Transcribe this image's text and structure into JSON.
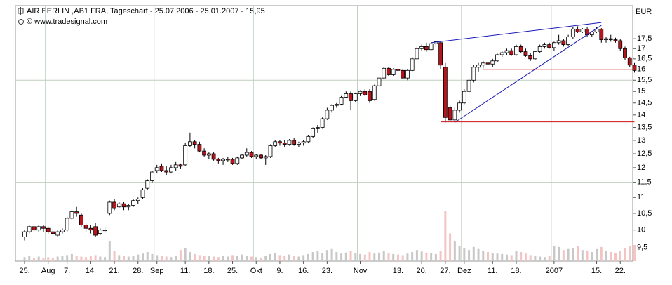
{
  "chart_data": {
    "type": "candlestick",
    "title": "AIR BERLIN ,AB1 FRA, Tageschart - 25.07.2006 - 25.01.2007 - 15,95",
    "subtitle": "© www.tradesignal.com",
    "y_unit": "EUR",
    "categories": [
      "25.",
      null,
      null,
      null,
      null,
      "Aug",
      null,
      null,
      null,
      "7.",
      null,
      null,
      null,
      null,
      "14.",
      null,
      null,
      null,
      null,
      "21.",
      null,
      null,
      null,
      null,
      "28.",
      null,
      null,
      null,
      "Sep",
      null,
      null,
      null,
      null,
      null,
      "11.",
      null,
      null,
      null,
      null,
      "18.",
      null,
      null,
      null,
      null,
      "25.",
      null,
      null,
      null,
      null,
      "Okt",
      null,
      null,
      null,
      null,
      "9.",
      null,
      null,
      null,
      null,
      "16.",
      null,
      null,
      null,
      null,
      "23.",
      null,
      null,
      null,
      null,
      null,
      null,
      "Nov",
      null,
      null,
      null,
      null,
      null,
      null,
      null,
      "13.",
      null,
      null,
      null,
      null,
      "20.",
      null,
      null,
      null,
      null,
      "27.",
      null,
      null,
      null,
      "Dez",
      null,
      null,
      null,
      null,
      null,
      "11.",
      null,
      null,
      null,
      null,
      "18.",
      null,
      null,
      null,
      null,
      null,
      null,
      null,
      "2007",
      null,
      null,
      null,
      null,
      null,
      null,
      null,
      null,
      "15.",
      null,
      null,
      null,
      null,
      "22.",
      null,
      null,
      null
    ],
    "open": [
      9.8,
      9.95,
      10.1,
      10.0,
      10.1,
      10.05,
      9.95,
      9.85,
      9.95,
      10.0,
      10.35,
      10.55,
      10.45,
      10.15,
      10.05,
      10.1,
      9.9,
      10.0,
      10.5,
      10.85,
      10.7,
      10.8,
      10.7,
      10.75,
      10.9,
      11.0,
      11.3,
      11.55,
      11.9,
      12.05,
      11.9,
      11.85,
      12.0,
      12.1,
      12.1,
      12.8,
      12.95,
      12.85,
      12.6,
      12.45,
      12.5,
      12.3,
      12.25,
      12.3,
      12.3,
      12.15,
      12.35,
      12.45,
      12.55,
      12.4,
      12.45,
      12.35,
      12.4,
      12.8,
      12.95,
      12.9,
      12.85,
      13.0,
      12.85,
      12.9,
      12.95,
      13.15,
      13.45,
      13.5,
      13.85,
      14.2,
      14.4,
      14.45,
      14.75,
      14.9,
      14.6,
      14.9,
      15.0,
      15.0,
      14.65,
      15.25,
      15.6,
      16.05,
      15.75,
      16.0,
      15.95,
      15.6,
      15.95,
      16.5,
      17.0,
      17.1,
      16.95,
      17.25,
      17.3,
      16.1,
      14.3,
      13.8,
      14.2,
      14.5,
      15.0,
      15.5,
      16.1,
      16.2,
      16.3,
      16.25,
      16.4,
      16.7,
      16.8,
      16.9,
      16.7,
      17.1,
      16.85,
      16.65,
      16.5,
      16.85,
      17.1,
      17.2,
      17.05,
      17.3,
      17.4,
      17.2,
      17.6,
      18.0,
      17.85,
      18.0,
      17.7,
      17.85,
      18.0,
      17.45,
      17.5,
      17.45,
      17.4,
      17.0,
      16.55,
      16.2
    ],
    "high": [
      10.0,
      10.15,
      10.2,
      10.15,
      10.15,
      10.1,
      10.05,
      10.0,
      10.05,
      10.4,
      10.6,
      10.7,
      10.5,
      10.2,
      10.15,
      10.2,
      10.05,
      10.1,
      10.9,
      10.95,
      10.85,
      10.85,
      10.8,
      10.95,
      11.0,
      11.3,
      11.6,
      11.9,
      12.1,
      12.15,
      12.05,
      12.1,
      12.2,
      12.15,
      12.9,
      13.3,
      13.0,
      12.95,
      12.7,
      12.55,
      12.55,
      12.35,
      12.35,
      12.4,
      12.35,
      12.4,
      12.5,
      12.7,
      12.6,
      12.5,
      12.5,
      12.45,
      12.85,
      13.0,
      13.0,
      13.0,
      13.05,
      13.1,
      12.95,
      13.0,
      13.2,
      13.5,
      13.6,
      13.9,
      14.3,
      14.45,
      14.5,
      14.8,
      15.0,
      15.0,
      14.95,
      15.05,
      15.1,
      15.1,
      15.3,
      15.7,
      16.1,
      16.1,
      16.05,
      16.1,
      16.0,
      16.0,
      16.6,
      17.1,
      17.2,
      17.3,
      17.3,
      17.4,
      17.4,
      16.3,
      14.4,
      14.3,
      14.6,
      15.1,
      15.6,
      16.2,
      16.3,
      16.4,
      16.4,
      16.5,
      16.75,
      16.9,
      17.0,
      17.0,
      17.2,
      17.2,
      17.0,
      16.8,
      16.9,
      17.2,
      17.3,
      17.3,
      17.35,
      17.7,
      17.5,
      17.7,
      18.1,
      18.15,
      18.05,
      18.1,
      17.9,
      18.1,
      18.05,
      17.6,
      17.7,
      17.55,
      17.5,
      17.1,
      16.6,
      16.3
    ],
    "low": [
      9.7,
      9.9,
      9.95,
      9.95,
      9.95,
      9.9,
      9.85,
      9.8,
      9.9,
      9.95,
      10.3,
      10.4,
      10.1,
      9.95,
      9.9,
      9.8,
      9.85,
      9.9,
      10.45,
      10.6,
      10.65,
      10.6,
      10.6,
      10.7,
      10.8,
      10.95,
      11.25,
      11.5,
      11.8,
      11.85,
      11.75,
      11.8,
      11.9,
      11.95,
      12.05,
      12.75,
      12.7,
      12.55,
      12.4,
      12.3,
      12.25,
      12.15,
      12.1,
      12.2,
      12.1,
      12.1,
      12.3,
      12.4,
      12.35,
      12.3,
      12.3,
      12.1,
      12.35,
      12.75,
      12.8,
      12.75,
      12.8,
      12.8,
      12.75,
      12.8,
      12.9,
      13.1,
      13.3,
      13.45,
      13.8,
      14.1,
      14.3,
      14.4,
      14.7,
      14.2,
      14.55,
      14.8,
      14.8,
      14.5,
      14.6,
      15.2,
      15.55,
      15.7,
      15.7,
      15.85,
      15.55,
      15.5,
      15.9,
      16.45,
      16.9,
      16.85,
      16.9,
      17.1,
      16.0,
      13.7,
      13.75,
      13.7,
      14.1,
      14.45,
      14.95,
      15.4,
      15.9,
      16.05,
      16.1,
      16.1,
      16.35,
      16.6,
      16.7,
      16.65,
      16.65,
      16.8,
      16.6,
      16.4,
      16.45,
      16.8,
      17.0,
      17.0,
      16.9,
      17.2,
      17.1,
      17.15,
      17.5,
      17.8,
      17.8,
      17.6,
      17.6,
      17.8,
      17.3,
      17.3,
      17.35,
      17.3,
      16.9,
      16.45,
      16.1,
      15.85
    ],
    "close": [
      9.95,
      10.1,
      10.0,
      10.1,
      10.05,
      9.95,
      9.9,
      9.95,
      10.0,
      10.35,
      10.55,
      10.5,
      10.15,
      10.05,
      10.0,
      9.85,
      10.0,
      10.0,
      10.85,
      10.65,
      10.8,
      10.7,
      10.75,
      10.9,
      10.95,
      11.25,
      11.55,
      11.85,
      12.0,
      11.9,
      11.85,
      12.0,
      12.1,
      12.05,
      12.8,
      12.95,
      12.85,
      12.6,
      12.45,
      12.5,
      12.3,
      12.25,
      12.3,
      12.3,
      12.15,
      12.35,
      12.45,
      12.55,
      12.4,
      12.45,
      12.35,
      12.4,
      12.8,
      12.95,
      12.9,
      12.85,
      13.0,
      12.85,
      12.9,
      12.95,
      13.15,
      13.45,
      13.5,
      13.85,
      14.2,
      14.4,
      14.45,
      14.75,
      14.9,
      14.6,
      14.9,
      15.0,
      14.85,
      14.6,
      15.25,
      15.6,
      16.05,
      15.75,
      16.0,
      15.95,
      15.6,
      15.95,
      16.5,
      17.0,
      17.1,
      16.95,
      17.25,
      17.35,
      16.2,
      13.9,
      13.8,
      14.2,
      14.5,
      15.0,
      15.5,
      16.1,
      16.2,
      16.3,
      16.25,
      16.4,
      16.7,
      16.8,
      16.9,
      16.7,
      17.1,
      16.85,
      16.65,
      16.5,
      16.85,
      17.1,
      17.2,
      17.05,
      17.3,
      17.4,
      17.2,
      17.6,
      18.0,
      17.85,
      18.0,
      17.7,
      17.85,
      18.0,
      17.45,
      17.5,
      17.45,
      17.4,
      17.0,
      16.55,
      16.2,
      15.95
    ],
    "volume": [
      8,
      10,
      7,
      9,
      6,
      8,
      7,
      9,
      10,
      12,
      14,
      11,
      9,
      8,
      10,
      12,
      9,
      8,
      40,
      20,
      12,
      10,
      9,
      11,
      13,
      15,
      18,
      14,
      12,
      10,
      9,
      8,
      11,
      22,
      25,
      18,
      14,
      12,
      10,
      11,
      9,
      8,
      10,
      9,
      12,
      11,
      13,
      10,
      9,
      8,
      7,
      10,
      14,
      16,
      12,
      11,
      13,
      10,
      9,
      12,
      14,
      18,
      20,
      16,
      22,
      24,
      18,
      15,
      17,
      20,
      16,
      14,
      13,
      18,
      15,
      17,
      20,
      16,
      14,
      13,
      12,
      15,
      18,
      22,
      19,
      17,
      16,
      14,
      20,
      100,
      55,
      40,
      30,
      25,
      22,
      28,
      24,
      20,
      18,
      16,
      15,
      14,
      13,
      12,
      20,
      18,
      15,
      12,
      10,
      9,
      8,
      11,
      30,
      28,
      22,
      24,
      26,
      30,
      22,
      20,
      18,
      24,
      28,
      20,
      18,
      16,
      20,
      26,
      30,
      32
    ],
    "up_color": "#ffffff",
    "down_color": "#b8141c",
    "volume_up_color": "#c8c8c8",
    "volume_down_color": "#f2c4c4",
    "lines": [
      {
        "color": "#1a1ab8",
        "x": [
          86,
          122
        ],
        "values": [
          17.3,
          18.35
        ]
      },
      {
        "color": "#1a1ab8",
        "x": [
          91,
          122
        ],
        "values": [
          13.7,
          18.2
        ]
      },
      {
        "color": "#d01010",
        "x": [
          97,
          129
        ],
        "values": [
          16,
          16
        ]
      },
      {
        "color": "#d01010",
        "x": [
          88,
          129
        ],
        "values": [
          13.72,
          13.72
        ]
      }
    ],
    "ylim": [
      9.13,
      19.28
    ],
    "log_y": true,
    "yticks": [
      {
        "value": 9.5,
        "label": "9,5"
      },
      10,
      {
        "value": 10.5,
        "label": "10,5"
      },
      11,
      {
        "value": 11.5,
        "label": "11,5"
      },
      12,
      {
        "value": 12.5,
        "label": "12,5"
      },
      13,
      {
        "value": 13.5,
        "label": "13,5"
      },
      14,
      {
        "value": 14.5,
        "label": "14,5"
      },
      15,
      {
        "value": 15.5,
        "label": "15,5"
      },
      16,
      {
        "value": 16.5,
        "label": "16,5"
      },
      17,
      {
        "value": 17.5,
        "label": "17,5"
      }
    ],
    "ygrid": [
      11.5,
      15.5
    ],
    "month_grid": true
  }
}
